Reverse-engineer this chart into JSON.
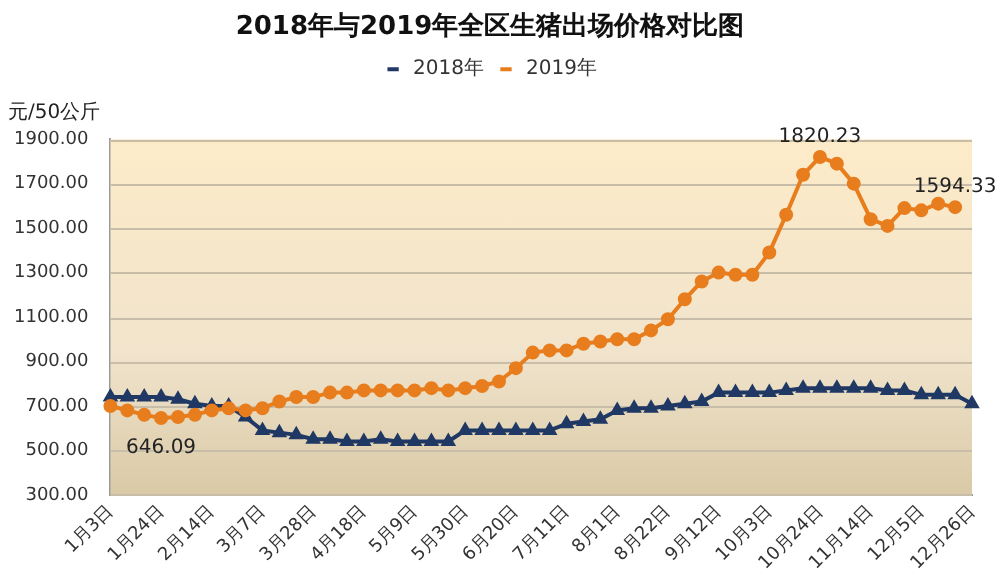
{
  "chart_data": {
    "type": "line",
    "title": "2018年与2019年全区生猪出场价格对比图",
    "ylabel": "元/50公斤",
    "categories": [
      "1月3日",
      null,
      null,
      "1月24日",
      null,
      null,
      "2月14日",
      null,
      null,
      "3月7日",
      null,
      null,
      "3月28日",
      null,
      null,
      "4月18日",
      null,
      null,
      "5月9日",
      null,
      null,
      "5月30日",
      null,
      null,
      "6月20日",
      null,
      null,
      "7月11日",
      null,
      null,
      "8月1日",
      null,
      null,
      "8月22日",
      null,
      null,
      "9月12日",
      null,
      null,
      "10月3日",
      null,
      null,
      "10月24日",
      null,
      null,
      "11月14日",
      null,
      null,
      "12月5日",
      null,
      null,
      "12月26日"
    ],
    "series": [
      {
        "name": "2018年",
        "color": "#1f3864",
        "marker": "triangle",
        "values": [
          740,
          740,
          740,
          740,
          730,
          710,
          700,
          700,
          650,
          590,
          580,
          570,
          550,
          550,
          540,
          540,
          550,
          540,
          540,
          540,
          540,
          590,
          590,
          590,
          590,
          590,
          590,
          620,
          630,
          640,
          680,
          690,
          690,
          700,
          710,
          720,
          760,
          760,
          760,
          760,
          770,
          780,
          780,
          780,
          780,
          780,
          770,
          770,
          750,
          750,
          750,
          710
        ]
      },
      {
        "name": "2019年",
        "color": "#e87d1e",
        "marker": "circle",
        "values": [
          700,
          680,
          660,
          646.09,
          650,
          660,
          680,
          690,
          680,
          690,
          720,
          740,
          740,
          760,
          760,
          770,
          770,
          770,
          770,
          780,
          770,
          780,
          790,
          810,
          870,
          940,
          950,
          950,
          980,
          990,
          1000,
          1000,
          1040,
          1090,
          1180,
          1260,
          1300,
          1290,
          1290,
          1390,
          1560,
          1740,
          1820.23,
          1790,
          1700,
          1540,
          1510,
          1590,
          1580,
          1610,
          1594.33,
          null
        ]
      }
    ],
    "ylim": [
      300,
      1900
    ],
    "yticks": [
      {
        "value": 300,
        "label": "300.00"
      },
      {
        "value": 500,
        "label": "500.00"
      },
      {
        "value": 700,
        "label": "700.00"
      },
      {
        "value": 900,
        "label": "900.00"
      },
      {
        "value": 1100,
        "label": "1100.00"
      },
      {
        "value": 1300,
        "label": "1300.00"
      },
      {
        "value": 1500,
        "label": "1500.00"
      },
      {
        "value": 1700,
        "label": "1700.00"
      },
      {
        "value": 1900,
        "label": "1900.00"
      }
    ],
    "grid": "y",
    "legend": "top",
    "annotations": [
      {
        "text": "646.09",
        "x": "1月24日",
        "y": 646.09
      },
      {
        "text": "1820.23",
        "x": "10月24日",
        "y": 1820.23
      },
      {
        "text": "1594.33",
        "y": 1594.33
      }
    ]
  }
}
